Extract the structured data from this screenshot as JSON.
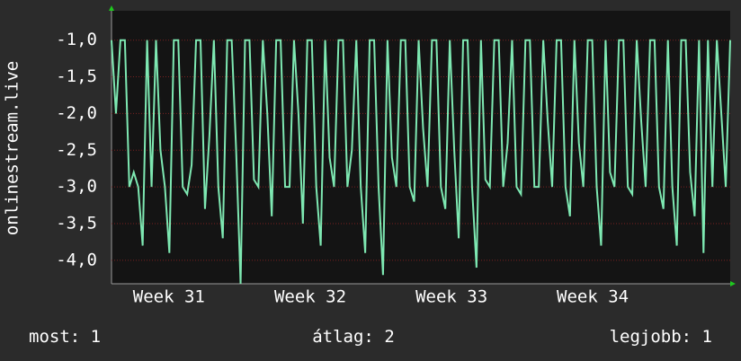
{
  "chart_data": {
    "type": "line",
    "ylabel": "onlinestream.live",
    "color": "#7ee8b2",
    "grid": true,
    "ylim": [
      -4.32,
      -0.6
    ],
    "yticks": [
      {
        "value": -4,
        "label": "-4,0"
      },
      {
        "value": -3.5,
        "label": "-3,5"
      },
      {
        "value": -3,
        "label": "-3,0"
      },
      {
        "value": -2.5,
        "label": "-2,5"
      },
      {
        "value": -2,
        "label": "-2,0"
      },
      {
        "value": -1.5,
        "label": "-1,5"
      },
      {
        "value": -1,
        "label": "-1,0"
      }
    ],
    "xlim": [
      0,
      139
    ],
    "xticks": [
      {
        "value": 12.9,
        "label": "Week 31"
      },
      {
        "value": 44.65,
        "label": "Week 32"
      },
      {
        "value": 76.4,
        "label": "Week 33"
      },
      {
        "value": 108.1,
        "label": "Week 34"
      }
    ],
    "values": [
      -1.0,
      -2.0,
      -1.0,
      -1.0,
      -3.0,
      -2.8,
      -3.0,
      -3.8,
      -1.0,
      -3.0,
      -1.0,
      -2.5,
      -3.0,
      -3.9,
      -1.0,
      -1.0,
      -3.0,
      -3.1,
      -2.7,
      -1.0,
      -1.0,
      -3.3,
      -2.3,
      -1.0,
      -3.0,
      -3.7,
      -1.0,
      -1.0,
      -2.5,
      -4.32,
      -1.0,
      -1.0,
      -2.9,
      -3.0,
      -1.0,
      -2.0,
      -3.4,
      -1.0,
      -1.0,
      -3.0,
      -3.0,
      -1.0,
      -2.0,
      -3.5,
      -1.0,
      -1.0,
      -3.0,
      -3.8,
      -1.0,
      -2.6,
      -3.0,
      -1.0,
      -1.0,
      -3.0,
      -2.5,
      -1.0,
      -3.0,
      -3.9,
      -1.0,
      -1.0,
      -3.0,
      -4.2,
      -1.0,
      -2.6,
      -3.0,
      -1.0,
      -1.0,
      -3.0,
      -3.2,
      -1.0,
      -2.2,
      -3.0,
      -1.0,
      -1.0,
      -3.0,
      -3.3,
      -1.0,
      -2.5,
      -3.7,
      -1.0,
      -1.0,
      -3.0,
      -4.1,
      -1.0,
      -2.9,
      -3.0,
      -1.0,
      -1.0,
      -3.0,
      -2.4,
      -1.0,
      -3.0,
      -3.1,
      -1.0,
      -1.0,
      -3.0,
      -3.0,
      -1.0,
      -2.1,
      -3.0,
      -1.0,
      -1.0,
      -3.0,
      -3.4,
      -1.0,
      -2.4,
      -3.0,
      -1.0,
      -1.0,
      -3.0,
      -3.8,
      -1.0,
      -2.8,
      -3.0,
      -1.0,
      -1.0,
      -3.0,
      -3.1,
      -1.0,
      -2.1,
      -3.0,
      -1.0,
      -1.0,
      -3.0,
      -3.3,
      -1.0,
      -3.0,
      -3.8,
      -1.0,
      -1.0,
      -2.8,
      -3.4,
      -1.0,
      -3.9,
      -1.0,
      -3.0,
      -1.0,
      -2.0,
      -3.0,
      -1.0
    ],
    "stats": [
      {
        "label": "most:",
        "value": 1
      },
      {
        "label": "átlag:",
        "value": 2
      },
      {
        "label": "legjobb:",
        "value": 1
      }
    ]
  }
}
